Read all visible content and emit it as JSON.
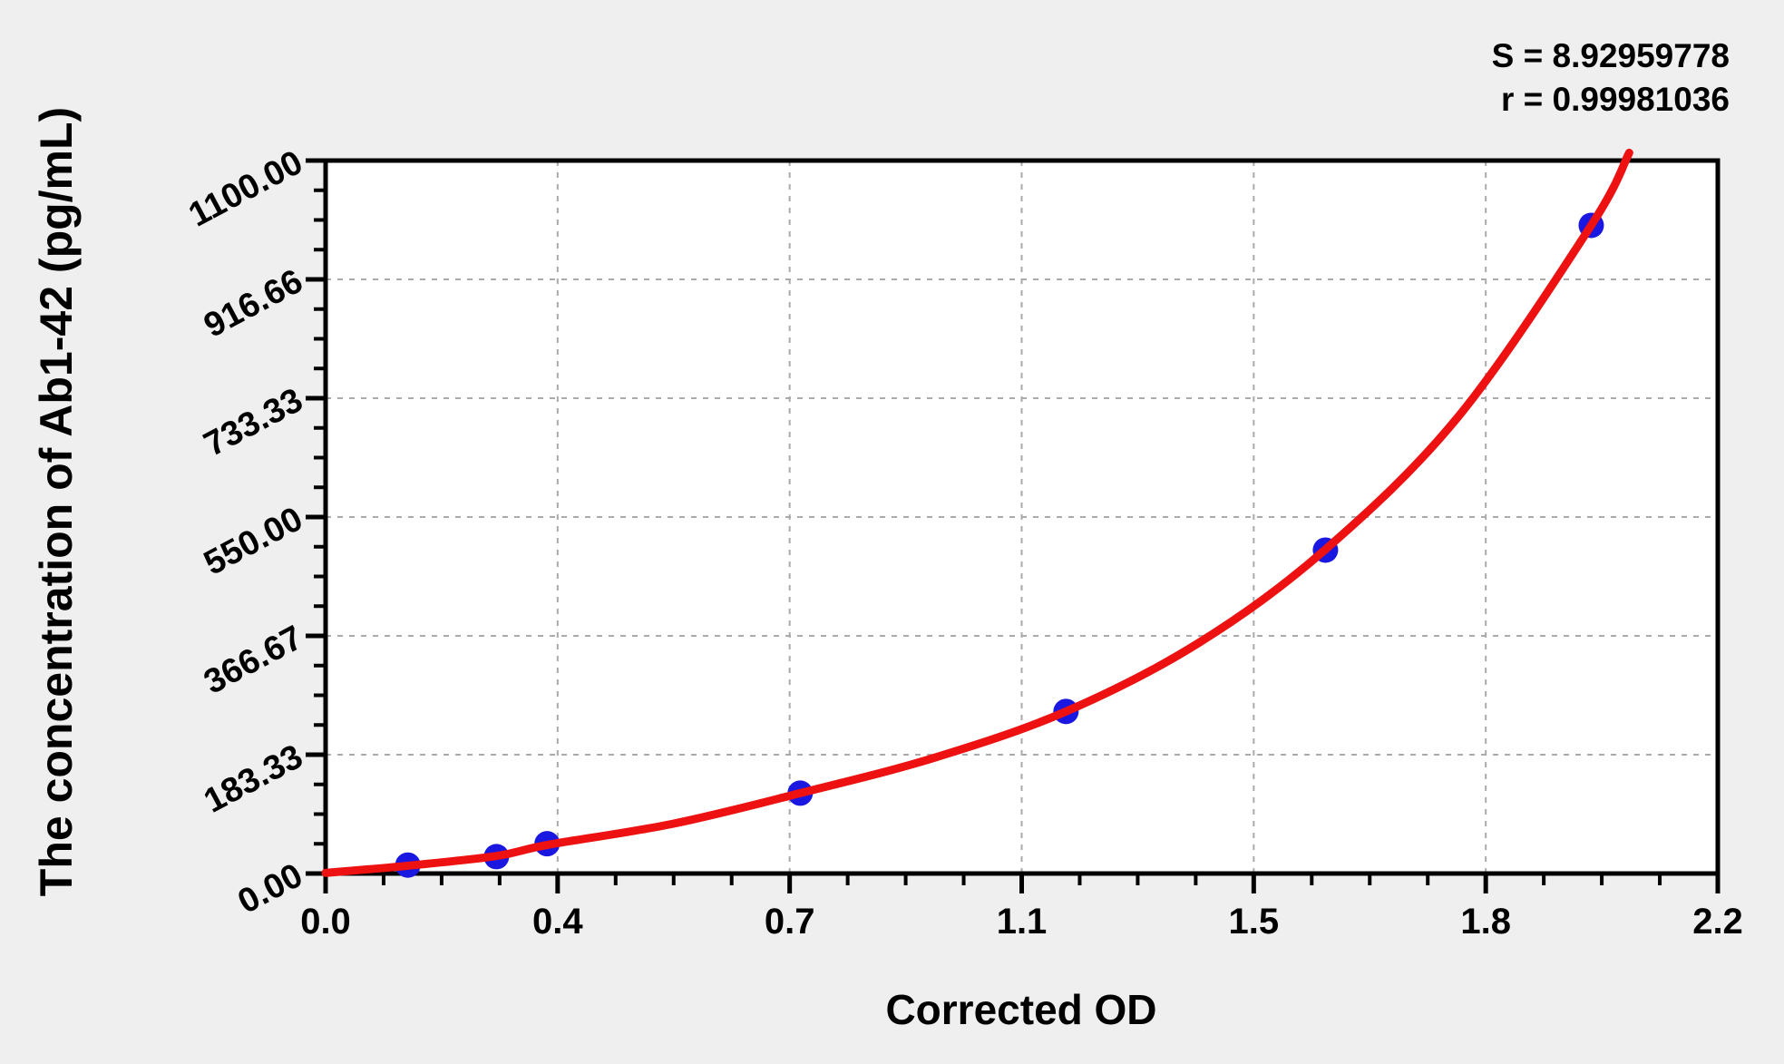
{
  "page": {
    "background": "#efefef"
  },
  "chart_data": {
    "type": "scatter",
    "title": "",
    "xlabel": "Corrected OD",
    "ylabel": "The concentration of Ab1-42 (pg/mL)",
    "xlim": [
      0,
      2.2
    ],
    "ylim": [
      0,
      1100
    ],
    "x_major_divisions": 6,
    "y_major_divisions": 6,
    "minor_ticks_per_division": 3,
    "x_tick_labels": [
      "0.0",
      "0.4",
      "0.7",
      "1.1",
      "1.5",
      "1.8",
      "2.2"
    ],
    "y_tick_labels": [
      "0.00",
      "183.33",
      "366.67",
      "550.00",
      "733.33",
      "916.66",
      "1100.00"
    ],
    "grid": "dashed-major",
    "legend": "none",
    "annotations": {
      "s_line": "S = 8.92959778",
      "r_line": "r = 0.99981036"
    },
    "series": [
      {
        "name": "standard-points",
        "type": "scatter",
        "color": "#1a17e0",
        "marker_radius": 14,
        "points": [
          [
            0.13,
            13
          ],
          [
            0.27,
            26
          ],
          [
            0.35,
            46
          ],
          [
            0.75,
            124
          ],
          [
            1.17,
            250
          ],
          [
            1.58,
            499
          ],
          [
            2.0,
            1000
          ]
        ]
      },
      {
        "name": "fitted-curve",
        "type": "line",
        "color": "#ed1111",
        "line_width": 9,
        "points": [
          [
            0,
            1
          ],
          [
            0.13,
            12
          ],
          [
            0.27,
            27
          ],
          [
            0.35,
            44
          ],
          [
            0.55,
            77
          ],
          [
            0.75,
            124
          ],
          [
            0.96,
            178
          ],
          [
            1.17,
            250
          ],
          [
            1.38,
            356
          ],
          [
            1.58,
            500
          ],
          [
            1.79,
            705
          ],
          [
            2.0,
            1000
          ],
          [
            2.06,
            1112
          ]
        ]
      }
    ],
    "colors": {
      "grid": "#aaaaaa",
      "frame": "#000000",
      "plot_bg": "#ffffff",
      "page_bg": "#efefef",
      "text": "#000000"
    }
  }
}
